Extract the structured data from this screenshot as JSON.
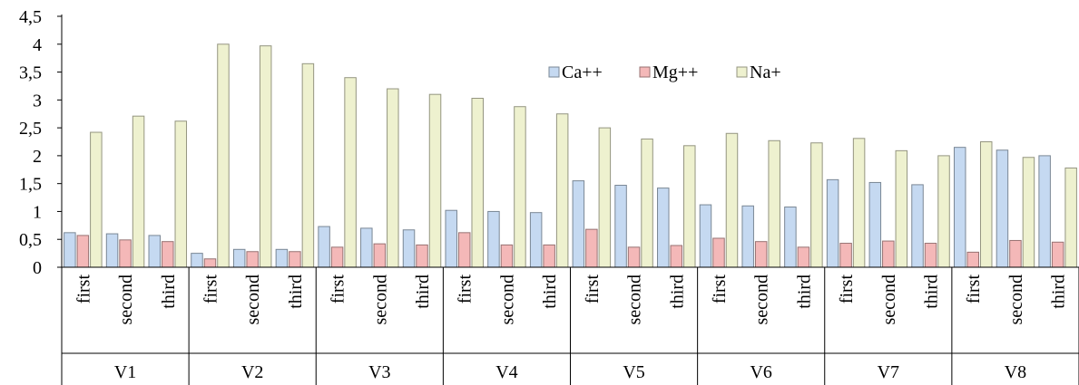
{
  "chart_data": {
    "type": "bar",
    "title": "",
    "xlabel": "",
    "ylabel": "",
    "ylim": [
      0,
      4.5
    ],
    "yticks": [
      "0",
      "0,5",
      "1",
      "1,5",
      "2",
      "2,5",
      "3",
      "3,5",
      "4",
      "4,5"
    ],
    "grid": false,
    "legend_position": "top-center",
    "groups": [
      "V1",
      "V2",
      "V3",
      "V4",
      "V5",
      "V6",
      "V7",
      "V8"
    ],
    "subcategories": [
      "first",
      "second",
      "third"
    ],
    "series": [
      {
        "name": "Ca++",
        "color": "#c5d9f1",
        "values": [
          0.62,
          0.6,
          0.57,
          0.25,
          0.32,
          0.32,
          0.73,
          0.7,
          0.67,
          1.02,
          1.0,
          0.98,
          1.55,
          1.47,
          1.42,
          1.12,
          1.1,
          1.08,
          1.57,
          1.52,
          1.48,
          2.15,
          2.1,
          2.0
        ]
      },
      {
        "name": "Mg++",
        "color": "#f4b8b8",
        "values": [
          0.57,
          0.49,
          0.46,
          0.15,
          0.28,
          0.28,
          0.36,
          0.42,
          0.4,
          0.62,
          0.4,
          0.4,
          0.68,
          0.36,
          0.39,
          0.52,
          0.46,
          0.36,
          0.43,
          0.47,
          0.43,
          0.27,
          0.48,
          0.45
        ]
      },
      {
        "name": "Na+",
        "color": "#eef1cf",
        "values": [
          2.42,
          2.71,
          2.62,
          4.0,
          3.97,
          3.65,
          3.4,
          3.2,
          3.1,
          3.03,
          2.88,
          2.75,
          2.5,
          2.3,
          2.18,
          2.4,
          2.27,
          2.23,
          2.31,
          2.09,
          2.0,
          2.25,
          1.97,
          1.78
        ]
      }
    ]
  }
}
